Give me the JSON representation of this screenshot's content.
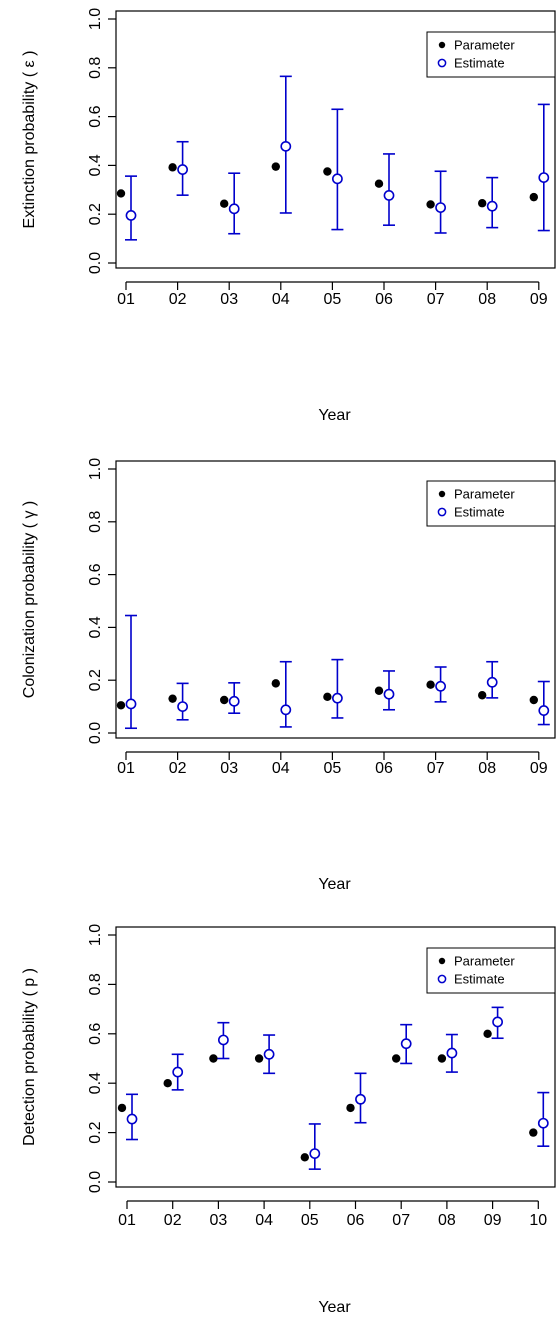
{
  "chart_data": [
    {
      "type": "scatter",
      "ylabel": "Extinction probability ( ε )",
      "xlabel": "Year",
      "categories": [
        "01",
        "02",
        "03",
        "04",
        "05",
        "06",
        "07",
        "08",
        "09"
      ],
      "ylim": [
        0,
        1
      ],
      "yticks": [
        "0.0",
        "0.2",
        "0.4",
        "0.6",
        "0.8",
        "1.0"
      ],
      "legend_position": "top-right",
      "series": [
        {
          "name": "Parameter",
          "marker": "filled-circle",
          "color": "#000000",
          "values": [
            0.285,
            0.392,
            0.243,
            0.395,
            0.375,
            0.325,
            0.24,
            0.245,
            0.27
          ]
        },
        {
          "name": "Estimate",
          "marker": "open-circle",
          "color": "#0000CC",
          "values": [
            0.195,
            0.383,
            0.222,
            0.478,
            0.345,
            0.277,
            0.227,
            0.233,
            0.35
          ],
          "lower": [
            0.095,
            0.278,
            0.12,
            0.205,
            0.137,
            0.155,
            0.123,
            0.145,
            0.133
          ],
          "upper": [
            0.356,
            0.497,
            0.368,
            0.765,
            0.63,
            0.447,
            0.376,
            0.35,
            0.65
          ]
        }
      ]
    },
    {
      "type": "scatter",
      "ylabel": "Colonization probability ( γ )",
      "xlabel": "Year",
      "categories": [
        "01",
        "02",
        "03",
        "04",
        "05",
        "06",
        "07",
        "08",
        "09"
      ],
      "ylim": [
        0,
        1
      ],
      "yticks": [
        "0.0",
        "0.2",
        "0.4",
        "0.6",
        "0.8",
        "1.0"
      ],
      "legend_position": "top-right",
      "series": [
        {
          "name": "Parameter",
          "marker": "filled-circle",
          "color": "#000000",
          "values": [
            0.105,
            0.13,
            0.125,
            0.188,
            0.137,
            0.16,
            0.183,
            0.143,
            0.125
          ]
        },
        {
          "name": "Estimate",
          "marker": "open-circle",
          "color": "#0000CC",
          "values": [
            0.11,
            0.1,
            0.12,
            0.088,
            0.132,
            0.147,
            0.177,
            0.192,
            0.085
          ],
          "lower": [
            0.018,
            0.05,
            0.075,
            0.023,
            0.057,
            0.088,
            0.118,
            0.133,
            0.032
          ],
          "upper": [
            0.445,
            0.188,
            0.19,
            0.27,
            0.278,
            0.235,
            0.25,
            0.27,
            0.195
          ]
        }
      ]
    },
    {
      "type": "scatter",
      "ylabel": "Detection probability ( p )",
      "xlabel": "Year",
      "categories": [
        "01",
        "02",
        "03",
        "04",
        "05",
        "06",
        "07",
        "08",
        "09",
        "10"
      ],
      "ylim": [
        0,
        1
      ],
      "yticks": [
        "0.0",
        "0.2",
        "0.4",
        "0.6",
        "0.8",
        "1.0"
      ],
      "legend_position": "top-right",
      "series": [
        {
          "name": "Parameter",
          "marker": "filled-circle",
          "color": "#000000",
          "values": [
            0.3,
            0.4,
            0.5,
            0.5,
            0.1,
            0.3,
            0.5,
            0.5,
            0.6,
            0.2
          ]
        },
        {
          "name": "Estimate",
          "marker": "open-circle",
          "color": "#0000CC",
          "values": [
            0.255,
            0.445,
            0.575,
            0.517,
            0.115,
            0.335,
            0.56,
            0.522,
            0.648,
            0.238
          ],
          "lower": [
            0.172,
            0.373,
            0.5,
            0.44,
            0.052,
            0.24,
            0.48,
            0.445,
            0.582,
            0.145
          ],
          "upper": [
            0.355,
            0.517,
            0.645,
            0.595,
            0.235,
            0.44,
            0.637,
            0.597,
            0.707,
            0.362
          ]
        }
      ]
    }
  ]
}
